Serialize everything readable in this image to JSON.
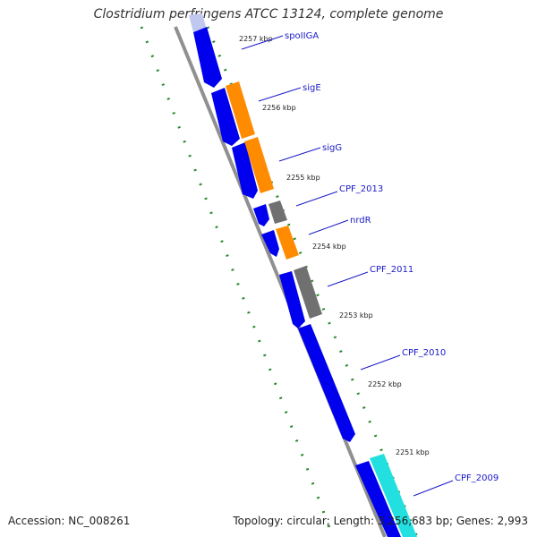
{
  "title": "Clostridium perfringens ATCC 13124, complete genome",
  "accession": "Accession: NC_008261",
  "summary": "Topology: circular; Length: 3,256,683 bp; Genes: 2,993",
  "colors": {
    "forward_gene": "#0000ee",
    "rna": "#ff8c00",
    "other": "#707070",
    "highlight": "#22e0e0",
    "faded": "#c0c8f0",
    "backbone": "#909090",
    "tick": "#2a8a2a",
    "label": "#1a1ac8"
  },
  "ticks": [
    "2257 kbp",
    "2256 kbp",
    "2255 kbp",
    "2254 kbp",
    "2253 kbp",
    "2252 kbp",
    "2251 kbp"
  ],
  "gene_labels": [
    "spoIIGA",
    "sigE",
    "sigG",
    "CPF_2013",
    "nrdR",
    "CPF_2011",
    "CPF_2010",
    "CPF_2009"
  ]
}
